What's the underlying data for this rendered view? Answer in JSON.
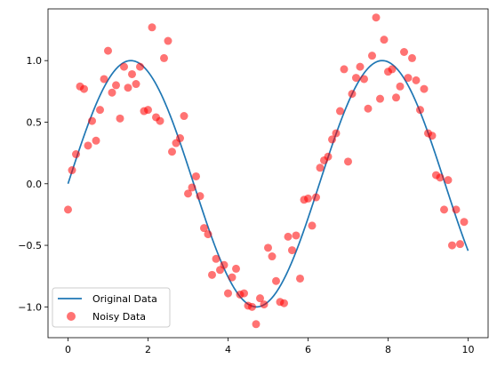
{
  "chart_data": {
    "type": "scatter",
    "title": "",
    "xlabel": "",
    "ylabel": "",
    "xlim": [
      -0.5,
      10.5
    ],
    "ylim": [
      -1.25,
      1.42
    ],
    "xticks": [
      0,
      2,
      4,
      6,
      8,
      10
    ],
    "xtick_labels": [
      "0",
      "2",
      "4",
      "6",
      "8",
      "10"
    ],
    "yticks": [
      -1.0,
      -0.5,
      0.0,
      0.5,
      1.0
    ],
    "ytick_labels": [
      "−1.0",
      "−0.5",
      "0.0",
      "0.5",
      "1.0"
    ],
    "grid": false,
    "legend_position": "lower-left",
    "series": [
      {
        "name": "Original Data",
        "type": "line",
        "color": "#1f77b4",
        "function": "sin(x)",
        "x_range": [
          0,
          10
        ]
      },
      {
        "name": "Noisy Data",
        "type": "scatter",
        "color": "#ff0000",
        "alpha": 0.55,
        "points": [
          [
            0.0,
            -0.21
          ],
          [
            0.1,
            0.11
          ],
          [
            0.2,
            0.24
          ],
          [
            0.3,
            0.79
          ],
          [
            0.4,
            0.77
          ],
          [
            0.5,
            0.31
          ],
          [
            0.6,
            0.51
          ],
          [
            0.7,
            0.35
          ],
          [
            0.8,
            0.6
          ],
          [
            0.9,
            0.85
          ],
          [
            1.0,
            1.08
          ],
          [
            1.1,
            0.74
          ],
          [
            1.2,
            0.8
          ],
          [
            1.3,
            0.53
          ],
          [
            1.4,
            0.95
          ],
          [
            1.5,
            0.78
          ],
          [
            1.6,
            0.89
          ],
          [
            1.7,
            0.81
          ],
          [
            1.8,
            0.95
          ],
          [
            1.9,
            0.59
          ],
          [
            2.0,
            0.6
          ],
          [
            2.1,
            1.27
          ],
          [
            2.2,
            0.54
          ],
          [
            2.3,
            0.51
          ],
          [
            2.4,
            1.02
          ],
          [
            2.5,
            1.16
          ],
          [
            2.6,
            0.26
          ],
          [
            2.7,
            0.33
          ],
          [
            2.8,
            0.37
          ],
          [
            2.9,
            0.55
          ],
          [
            3.0,
            -0.08
          ],
          [
            3.1,
            -0.03
          ],
          [
            3.2,
            0.06
          ],
          [
            3.3,
            -0.1
          ],
          [
            3.4,
            -0.36
          ],
          [
            3.5,
            -0.41
          ],
          [
            3.6,
            -0.74
          ],
          [
            3.7,
            -0.61
          ],
          [
            3.8,
            -0.7
          ],
          [
            3.9,
            -0.66
          ],
          [
            4.0,
            -0.89
          ],
          [
            4.1,
            -0.76
          ],
          [
            4.2,
            -0.69
          ],
          [
            4.3,
            -0.9
          ],
          [
            4.4,
            -0.89
          ],
          [
            4.5,
            -0.99
          ],
          [
            4.6,
            -1.0
          ],
          [
            4.7,
            -1.14
          ],
          [
            4.8,
            -0.93
          ],
          [
            4.9,
            -0.98
          ],
          [
            5.0,
            -0.52
          ],
          [
            5.1,
            -0.59
          ],
          [
            5.2,
            -0.79
          ],
          [
            5.3,
            -0.96
          ],
          [
            5.4,
            -0.97
          ],
          [
            5.5,
            -0.43
          ],
          [
            5.6,
            -0.54
          ],
          [
            5.7,
            -0.42
          ],
          [
            5.8,
            -0.77
          ],
          [
            5.9,
            -0.13
          ],
          [
            6.0,
            -0.12
          ],
          [
            6.1,
            -0.34
          ],
          [
            6.2,
            -0.11
          ],
          [
            6.3,
            0.13
          ],
          [
            6.4,
            0.19
          ],
          [
            6.5,
            0.22
          ],
          [
            6.6,
            0.36
          ],
          [
            6.7,
            0.41
          ],
          [
            6.8,
            0.59
          ],
          [
            6.9,
            0.93
          ],
          [
            7.0,
            0.18
          ],
          [
            7.1,
            0.73
          ],
          [
            7.2,
            0.86
          ],
          [
            7.3,
            0.95
          ],
          [
            7.4,
            0.85
          ],
          [
            7.5,
            0.61
          ],
          [
            7.6,
            1.04
          ],
          [
            7.7,
            1.35
          ],
          [
            7.8,
            0.69
          ],
          [
            7.9,
            1.17
          ],
          [
            8.0,
            0.91
          ],
          [
            8.1,
            0.93
          ],
          [
            8.2,
            0.7
          ],
          [
            8.3,
            0.79
          ],
          [
            8.4,
            1.07
          ],
          [
            8.5,
            0.86
          ],
          [
            8.6,
            1.02
          ],
          [
            8.7,
            0.84
          ],
          [
            8.8,
            0.6
          ],
          [
            8.9,
            0.77
          ],
          [
            9.0,
            0.41
          ],
          [
            9.1,
            0.39
          ],
          [
            9.2,
            0.07
          ],
          [
            9.3,
            0.05
          ],
          [
            9.4,
            -0.21
          ],
          [
            9.5,
            0.03
          ],
          [
            9.6,
            -0.5
          ],
          [
            9.7,
            -0.21
          ],
          [
            9.8,
            -0.49
          ],
          [
            9.9,
            -0.31
          ]
        ]
      }
    ]
  }
}
